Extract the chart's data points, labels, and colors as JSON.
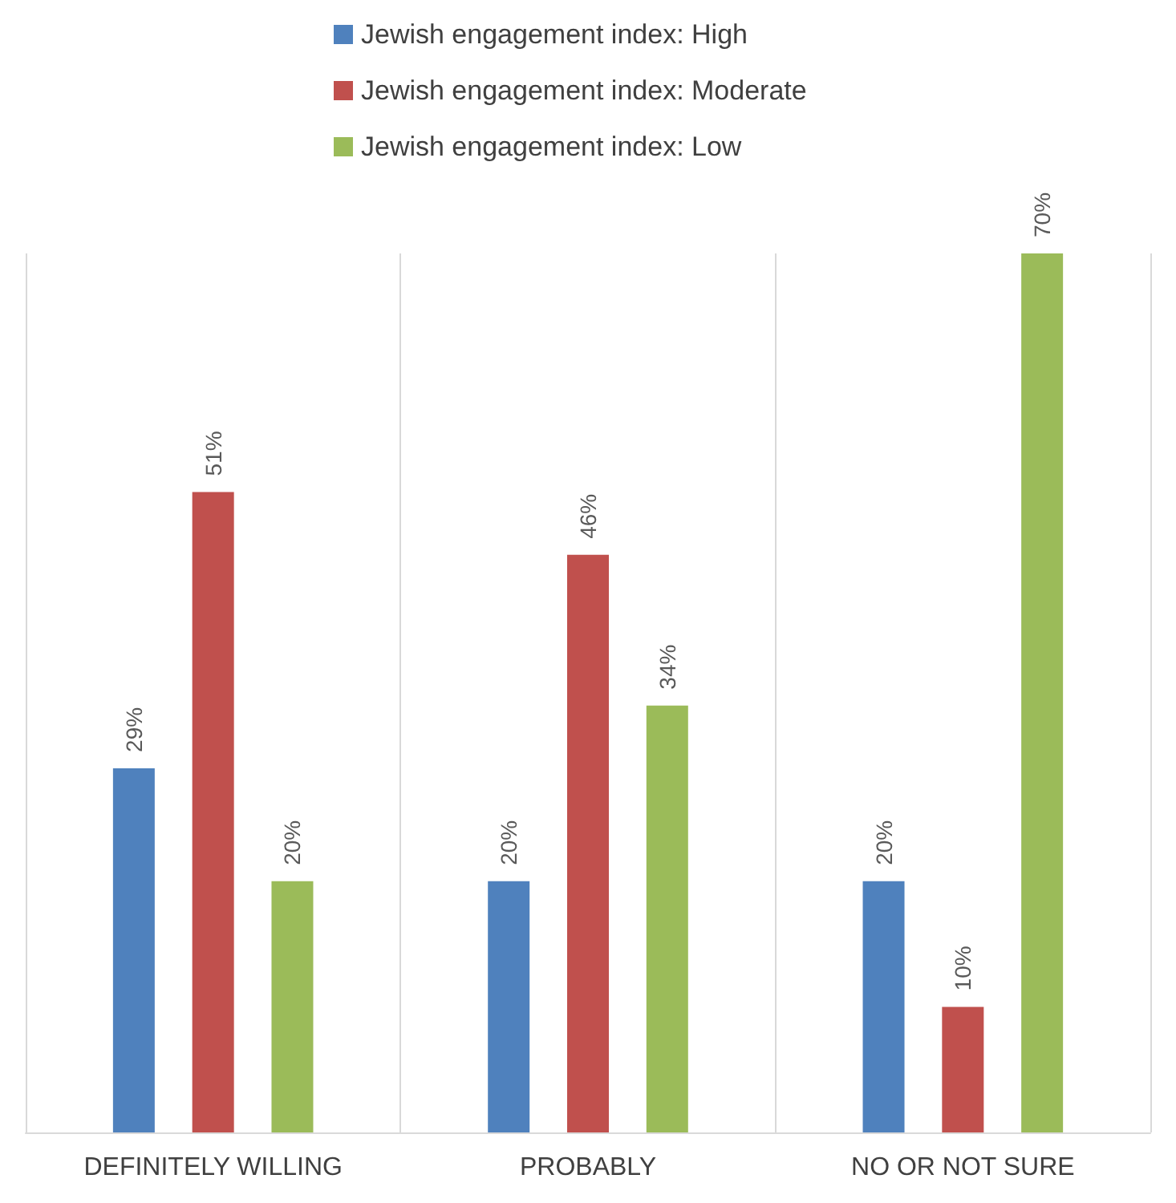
{
  "chart_data": {
    "type": "bar",
    "categories": [
      "DEFINITELY WILLING",
      "PROBABLY",
      "NO OR NOT SURE"
    ],
    "series": [
      {
        "name": "Jewish engagement index: High",
        "color": "#4f81bd",
        "values": [
          29,
          20,
          20
        ],
        "value_labels": [
          "29%",
          "20%",
          "20%"
        ]
      },
      {
        "name": "Jewish engagement index: Moderate",
        "color": "#c0504d",
        "values": [
          51,
          46,
          10
        ],
        "value_labels": [
          "51%",
          "46%",
          "10%"
        ]
      },
      {
        "name": "Jewish engagement index: Low",
        "color": "#9bbb59",
        "values": [
          20,
          34,
          70
        ],
        "value_labels": [
          "20%",
          "34%",
          "70%"
        ]
      }
    ],
    "legend": "top",
    "grid": "x"
  }
}
